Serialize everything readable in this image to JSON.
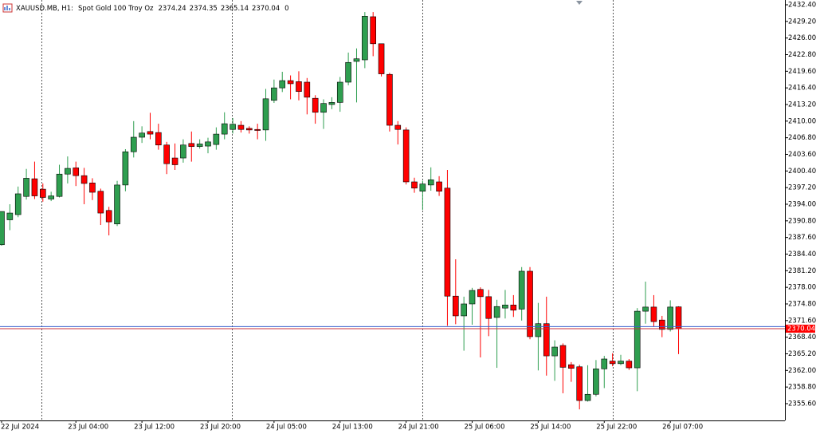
{
  "chart_data": {
    "type": "candlestick",
    "title": "XAUUSD.MB, H1:",
    "subtitle": "Spot Gold 100 Troy Oz",
    "tick_volume": 0,
    "up_color": "#2e9e4f",
    "down_color": "#ff0000",
    "bid": 2370.04,
    "bid_label": "2370.04",
    "ask": 2370.44,
    "categories": [
      "22 Jul 2024",
      null,
      null,
      null,
      null,
      null,
      null,
      null,
      null,
      "23 Jul 04:00",
      null,
      null,
      null,
      null,
      null,
      null,
      null,
      "23 Jul 12:00",
      null,
      null,
      null,
      null,
      null,
      null,
      null,
      "23 Jul 20:00",
      null,
      null,
      null,
      null,
      null,
      null,
      null,
      "24 Jul 05:00",
      null,
      null,
      null,
      null,
      null,
      null,
      null,
      "24 Jul 13:00",
      null,
      null,
      null,
      null,
      null,
      null,
      null,
      "24 Jul 21:00",
      null,
      null,
      null,
      null,
      null,
      null,
      null,
      "25 Jul 06:00",
      null,
      null,
      null,
      null,
      null,
      null,
      null,
      "25 Jul 14:00",
      null,
      null,
      null,
      null,
      null,
      null,
      null,
      "25 Jul 22:00",
      null,
      null,
      null,
      null,
      null,
      null,
      null,
      "26 Jul 07:00",
      null
    ],
    "open": [
      2386.2,
      2391.0,
      2392.0,
      2395.5,
      2398.9,
      2396.9,
      2395.0,
      2395.5,
      2399.8,
      2401.0,
      2399.5,
      2398.1,
      2396.5,
      2392.8,
      2390.2,
      2397.7,
      2404.1,
      2406.9,
      2408.0,
      2407.8,
      2405.4,
      2402.9,
      2402.9,
      2405.7,
      2405.1,
      2405.2,
      2405.5,
      2407.5,
      2408.4,
      2409.2,
      2408.6,
      2408.4,
      2408.3,
      2414.0,
      2416.4,
      2417.8,
      2417.6,
      2417.5,
      2414.4,
      2411.7,
      2413.2,
      2413.6,
      2417.5,
      2421.5,
      2421.8,
      2430.1,
      2424.9,
      2419.0,
      2409.2,
      2408.3,
      2398.3,
      2396.5,
      2397.7,
      2398.3,
      2397.1,
      2376.3,
      2372.5,
      2374.8,
      2377.6,
      2376.2,
      2372.2,
      2374.0,
      2374.6,
      2373.8,
      2381.1,
      2368.5,
      2371.0,
      2364.8,
      2366.8,
      2363.1,
      2362.7,
      2356.2,
      2357.4,
      2362.3,
      2363.8,
      2363.3,
      2363.8,
      2362.5,
      2373.4,
      2374.2,
      2371.7,
      2369.9,
      2374.24
    ],
    "high": [
      2392.6,
      2394.0,
      2397.4,
      2400.8,
      2402.2,
      2398.0,
      2396.4,
      2401.6,
      2403.2,
      2402.2,
      2401.0,
      2399.0,
      2397.0,
      2393.5,
      2398.5,
      2404.6,
      2410.0,
      2409.0,
      2411.6,
      2409.5,
      2406.0,
      2405.7,
      2406.5,
      2408.0,
      2406.5,
      2406.8,
      2408.8,
      2411.7,
      2410.6,
      2410.0,
      2409.0,
      2409.5,
      2416.2,
      2418.0,
      2419.5,
      2418.8,
      2419.6,
      2418.3,
      2415.0,
      2414.2,
      2414.6,
      2418.5,
      2423.2,
      2424.0,
      2431.0,
      2431.0,
      2424.9,
      2419.3,
      2410.0,
      2408.8,
      2399.1,
      2398.5,
      2401.1,
      2399.4,
      2400.6,
      2383.4,
      2376.2,
      2377.9,
      2378.0,
      2377.5,
      2375.6,
      2377.5,
      2376.5,
      2381.9,
      2381.9,
      2375.0,
      2376.2,
      2367.8,
      2367.2,
      2363.6,
      2363.1,
      2363.0,
      2364.0,
      2364.8,
      2365.3,
      2365.0,
      2364.2,
      2374.0,
      2379.1,
      2376.5,
      2372.5,
      2375.5,
      2374.35
    ],
    "low": [
      2386.0,
      2389.0,
      2391.5,
      2394.9,
      2395.0,
      2394.5,
      2394.6,
      2395.3,
      2398.0,
      2397.5,
      2394.0,
      2394.8,
      2390.0,
      2388.0,
      2389.8,
      2396.5,
      2403.0,
      2405.8,
      2406.5,
      2404.5,
      2399.8,
      2400.6,
      2402.0,
      2402.2,
      2404.7,
      2403.8,
      2404.5,
      2406.5,
      2407.6,
      2407.8,
      2407.6,
      2406.5,
      2406.2,
      2413.5,
      2415.6,
      2414.2,
      2414.0,
      2411.3,
      2409.5,
      2408.5,
      2412.3,
      2411.8,
      2416.9,
      2413.6,
      2420.2,
      2422.5,
      2418.6,
      2408.0,
      2405.5,
      2397.8,
      2396.2,
      2392.9,
      2396.6,
      2395.6,
      2370.6,
      2370.9,
      2365.8,
      2370.8,
      2364.5,
      2368.6,
      2362.5,
      2372.0,
      2372.3,
      2371.6,
      2368.0,
      2362.0,
      2361.0,
      2360.0,
      2357.6,
      2359.8,
      2354.5,
      2356.0,
      2357.0,
      2358.6,
      2362.8,
      2363.0,
      2362.1,
      2358.0,
      2371.0,
      2370.4,
      2368.4,
      2369.5,
      2365.14
    ],
    "close": [
      2392.6,
      2392.3,
      2396.0,
      2399.0,
      2395.6,
      2395.3,
      2395.6,
      2399.8,
      2400.9,
      2399.5,
      2398.0,
      2396.3,
      2392.3,
      2390.6,
      2397.7,
      2404.1,
      2406.9,
      2407.7,
      2407.5,
      2405.4,
      2401.8,
      2401.6,
      2405.4,
      2405.1,
      2405.6,
      2406.0,
      2407.5,
      2409.5,
      2409.4,
      2408.4,
      2408.3,
      2408.2,
      2414.3,
      2416.4,
      2417.8,
      2417.2,
      2415.7,
      2414.6,
      2411.7,
      2413.4,
      2413.6,
      2417.5,
      2421.3,
      2422.0,
      2430.2,
      2424.9,
      2419.1,
      2409.2,
      2408.4,
      2398.3,
      2397.1,
      2397.9,
      2398.7,
      2396.5,
      2376.3,
      2372.5,
      2374.8,
      2377.4,
      2376.2,
      2372.0,
      2374.3,
      2374.6,
      2373.6,
      2381.1,
      2368.5,
      2371.0,
      2364.8,
      2366.5,
      2362.6,
      2362.4,
      2356.2,
      2357.4,
      2362.3,
      2364.2,
      2363.3,
      2363.8,
      2362.5,
      2373.4,
      2374.2,
      2371.4,
      2369.9,
      2374.2,
      2370.04
    ],
    "ylim": [
      2352.37,
      2433.32
    ],
    "yticks": [
      {
        "value": 2355.6,
        "label": "2355.60"
      },
      {
        "value": 2358.8,
        "label": "2358.80"
      },
      {
        "value": 2362.0,
        "label": "2362.00"
      },
      {
        "value": 2365.2,
        "label": "2365.20"
      },
      {
        "value": 2368.4,
        "label": "2368.40"
      },
      {
        "value": 2371.6,
        "label": "2371.60"
      },
      {
        "value": 2374.8,
        "label": "2374.80"
      },
      {
        "value": 2378.0,
        "label": "2378.00"
      },
      {
        "value": 2381.2,
        "label": "2381.20"
      },
      {
        "value": 2384.4,
        "label": "2384.40"
      },
      {
        "value": 2387.6,
        "label": "2387.60"
      },
      {
        "value": 2390.8,
        "label": "2390.80"
      },
      {
        "value": 2394.0,
        "label": "2394.00"
      },
      {
        "value": 2397.2,
        "label": "2397.20"
      },
      {
        "value": 2400.4,
        "label": "2400.40"
      },
      {
        "value": 2403.6,
        "label": "2403.60"
      },
      {
        "value": 2406.8,
        "label": "2406.80"
      },
      {
        "value": 2410.0,
        "label": "2410.00"
      },
      {
        "value": 2413.2,
        "label": "2413.20"
      },
      {
        "value": 2416.4,
        "label": "2416.40"
      },
      {
        "value": 2419.6,
        "label": "2419.60"
      },
      {
        "value": 2422.8,
        "label": "2422.80"
      },
      {
        "value": 2426.0,
        "label": "2426.00"
      },
      {
        "value": 2429.2,
        "label": "2429.20"
      },
      {
        "value": 2432.4,
        "label": "2432.40"
      }
    ]
  }
}
